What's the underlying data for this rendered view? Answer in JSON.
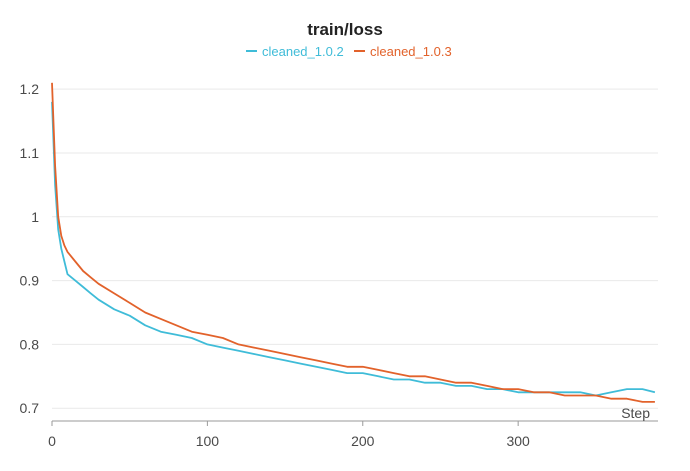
{
  "chart_data": {
    "type": "line",
    "title": "train/loss",
    "xlabel": "Step",
    "ylabel": "",
    "xlim": [
      0,
      390
    ],
    "ylim": [
      0.68,
      1.23
    ],
    "x_ticks": [
      0,
      100,
      200,
      300
    ],
    "y_ticks": [
      0.7,
      0.8,
      0.9,
      1,
      1.1,
      1.2
    ],
    "grid": true,
    "legend_position": "top",
    "series": [
      {
        "name": "cleaned_1.0.2",
        "color": "#3fbcd8",
        "x": [
          0,
          2,
          4,
          6,
          8,
          10,
          15,
          20,
          25,
          30,
          40,
          50,
          60,
          70,
          80,
          90,
          100,
          110,
          120,
          130,
          140,
          150,
          160,
          170,
          180,
          190,
          200,
          210,
          220,
          230,
          240,
          250,
          260,
          270,
          280,
          290,
          300,
          310,
          320,
          330,
          340,
          350,
          360,
          370,
          380,
          388
        ],
        "y": [
          1.18,
          1.05,
          0.98,
          0.95,
          0.93,
          0.91,
          0.9,
          0.89,
          0.88,
          0.87,
          0.855,
          0.845,
          0.83,
          0.82,
          0.815,
          0.81,
          0.8,
          0.795,
          0.79,
          0.785,
          0.78,
          0.775,
          0.77,
          0.765,
          0.76,
          0.755,
          0.755,
          0.75,
          0.745,
          0.745,
          0.74,
          0.74,
          0.735,
          0.735,
          0.73,
          0.73,
          0.725,
          0.725,
          0.725,
          0.725,
          0.725,
          0.72,
          0.725,
          0.73,
          0.73,
          0.725
        ]
      },
      {
        "name": "cleaned_1.0.3",
        "color": "#e2622b",
        "x": [
          0,
          2,
          4,
          6,
          8,
          10,
          15,
          20,
          25,
          30,
          40,
          50,
          60,
          70,
          80,
          90,
          100,
          110,
          120,
          130,
          140,
          150,
          160,
          170,
          180,
          190,
          200,
          210,
          220,
          230,
          240,
          250,
          260,
          270,
          280,
          290,
          300,
          310,
          320,
          330,
          340,
          350,
          360,
          370,
          380,
          388
        ],
        "y": [
          1.21,
          1.08,
          1.0,
          0.97,
          0.955,
          0.945,
          0.93,
          0.915,
          0.905,
          0.895,
          0.88,
          0.865,
          0.85,
          0.84,
          0.83,
          0.82,
          0.815,
          0.81,
          0.8,
          0.795,
          0.79,
          0.785,
          0.78,
          0.775,
          0.77,
          0.765,
          0.765,
          0.76,
          0.755,
          0.75,
          0.75,
          0.745,
          0.74,
          0.74,
          0.735,
          0.73,
          0.73,
          0.725,
          0.725,
          0.72,
          0.72,
          0.72,
          0.715,
          0.715,
          0.71,
          0.71
        ]
      }
    ]
  }
}
